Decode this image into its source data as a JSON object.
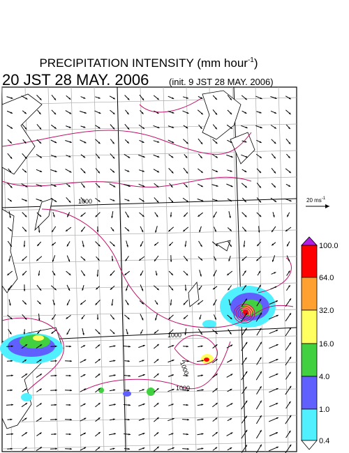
{
  "header": {
    "title": "PRECIPITATION INTENSITY (mm hour",
    "title_exponent": "-1",
    "title_close": ")",
    "valid_time": "20 JST 28 MAY. 2006",
    "init_time": "(init. 9 JST 28 MAY. 2006)"
  },
  "reference_vector": {
    "label": "20 ms",
    "exponent": "-1"
  },
  "colorbar": {
    "labels": [
      "100.0",
      "64.0",
      "32.0",
      "16.0",
      "4.0",
      "1.0",
      "0.4"
    ]
  },
  "map": {
    "contour_labels": [
      "1000",
      "1000",
      "1000",
      "1000"
    ]
  }
}
